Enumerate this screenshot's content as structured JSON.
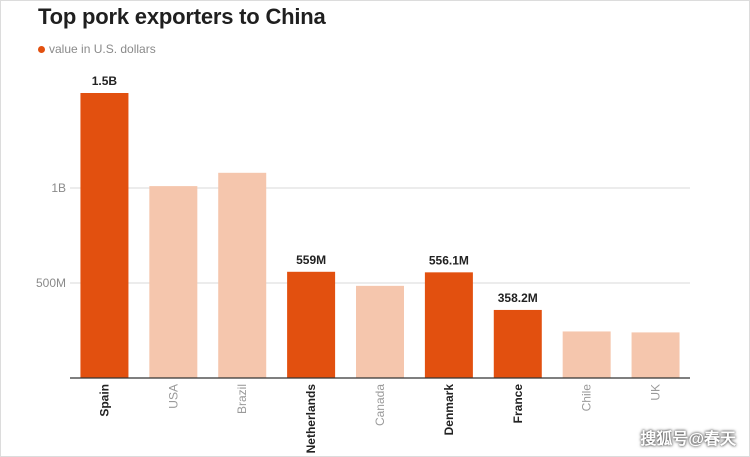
{
  "title": "Top pork exporters to China",
  "legend": {
    "label": "value in U.S. dollars",
    "color": "#e2500f"
  },
  "colors": {
    "highlight": "#e2500f",
    "muted": "#f5c6ad",
    "grid": "#d9d9d9",
    "axis": "#333333"
  },
  "watermark": "搜狐号@春天",
  "chart_data": {
    "type": "bar",
    "title": "Top pork exporters to China",
    "categories": [
      "Spain",
      "USA",
      "Brazil",
      "Netherlands",
      "Canada",
      "Denmark",
      "France",
      "Chile",
      "UK"
    ],
    "series": [
      {
        "name": "value in U.S. dollars",
        "values": [
          1500000000,
          1010000000,
          1080000000,
          559000000,
          485000000,
          556100000,
          358200000,
          245000000,
          240000000
        ]
      }
    ],
    "highlighted": [
      true,
      false,
      false,
      true,
      false,
      true,
      true,
      false,
      false
    ],
    "data_labels": [
      "1.5B",
      "",
      "",
      "559M",
      "",
      "556.1M",
      "358.2M",
      "",
      ""
    ],
    "yticks": [
      500000000,
      1000000000
    ],
    "ytick_labels": [
      "500M",
      "1B"
    ],
    "ylim": [
      0,
      1500000000
    ],
    "grid": true
  }
}
